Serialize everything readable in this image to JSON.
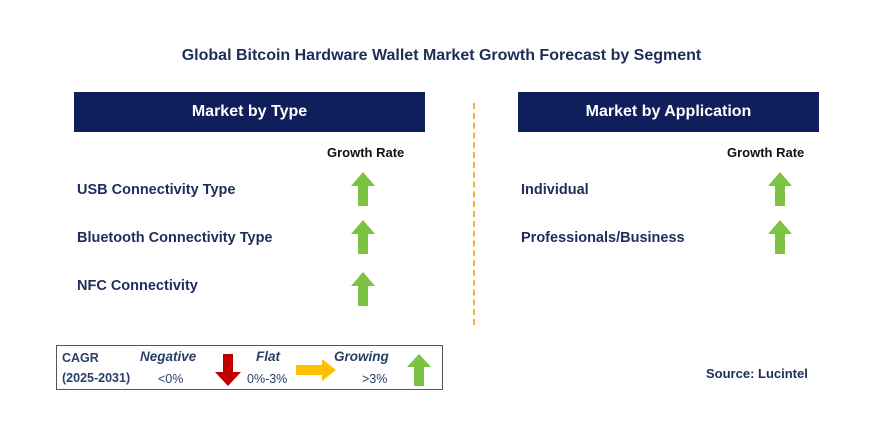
{
  "title": "Global Bitcoin Hardware Wallet Market Growth Forecast by Segment",
  "left_panel": {
    "header": "Market by Type",
    "column_header": "Growth Rate",
    "rows": [
      {
        "label": "USB Connectivity Type",
        "growth": "growing",
        "icon": "up-arrow-icon"
      },
      {
        "label": "Bluetooth Connectivity Type",
        "growth": "growing",
        "icon": "up-arrow-icon"
      },
      {
        "label": "NFC Connectivity",
        "growth": "growing",
        "icon": "up-arrow-icon"
      }
    ]
  },
  "right_panel": {
    "header": "Market by Application",
    "column_header": "Growth Rate",
    "rows": [
      {
        "label": "Individual",
        "growth": "growing",
        "icon": "up-arrow-icon"
      },
      {
        "label": "Professionals/Business",
        "growth": "growing",
        "icon": "up-arrow-icon"
      }
    ]
  },
  "legend": {
    "cagr_label": "CAGR",
    "period": "(2025-2031)",
    "negative": {
      "label": "Negative",
      "range": "<0%",
      "color": "#c00000",
      "icon": "down-arrow-icon"
    },
    "flat": {
      "label": "Flat",
      "range": "0%-3%",
      "color": "#ffc000",
      "icon": "right-arrow-icon"
    },
    "growing": {
      "label": "Growing",
      "range": ">3%",
      "color": "#7cc243",
      "icon": "up-arrow-icon"
    }
  },
  "source": "Source: Lucintel",
  "colors": {
    "header_bg": "#0f1f5c",
    "divider": "#f0b043",
    "up_arrow": "#7cc243"
  }
}
